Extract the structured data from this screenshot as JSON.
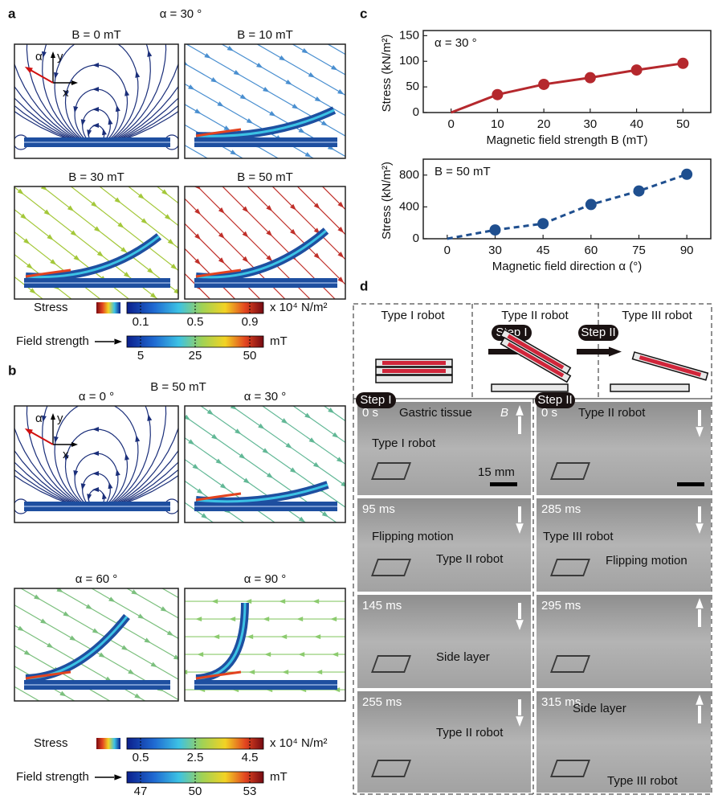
{
  "panel_labels": {
    "a": "a",
    "b": "b",
    "c": "c",
    "d": "d"
  },
  "axes_inset": {
    "alpha": "α",
    "y": "y",
    "x": "x"
  },
  "panel_a": {
    "title": "α = 30 °",
    "plots": [
      "B = 0 mT",
      "B = 10 mT",
      "B = 30 mT",
      "B = 50 mT"
    ],
    "stress_label": "Stress",
    "stress_unit": "x 10⁴ N/m²",
    "stress_ticks": [
      "0.1",
      "0.5",
      "0.9"
    ],
    "field_label": "Field strength",
    "field_unit": "mT",
    "field_ticks": [
      "5",
      "25",
      "50"
    ]
  },
  "panel_b": {
    "title": "B = 50 mT",
    "plots": [
      "α = 0 °",
      "α = 30 °",
      "α = 60 °",
      "α = 90 °"
    ],
    "stress_label": "Stress",
    "stress_unit": "x 10⁴ N/m²",
    "stress_ticks": [
      "0.5",
      "2.5",
      "4.5"
    ],
    "field_label": "Field strength",
    "field_unit": "mT",
    "field_ticks": [
      "47",
      "50",
      "53"
    ]
  },
  "chart_data": [
    {
      "type": "line",
      "annotation": "α = 30 °",
      "x_label": "Magnetic field strength B (mT)",
      "y_label": "Stress (kN/m²)",
      "x": [
        0,
        10,
        20,
        30,
        40,
        50
      ],
      "series": [
        {
          "color": "#b5282d",
          "values": [
            0,
            35,
            55,
            68,
            83,
            96
          ]
        }
      ],
      "xlim": [
        -6,
        56
      ],
      "xticks": [
        0,
        10,
        20,
        30,
        40,
        50
      ],
      "ylim": [
        0,
        160
      ],
      "yticks": [
        0,
        50,
        100,
        150
      ]
    },
    {
      "type": "line",
      "annotation": "B = 50 mT",
      "x_label": "Magnetic field direction α (°)",
      "y_label": "Stress (kN/m²)",
      "categories": [
        "0",
        "30",
        "45",
        "60",
        "75",
        "90"
      ],
      "series": [
        {
          "color": "#1f4f8f",
          "dashed": true,
          "values": [
            0,
            110,
            190,
            430,
            600,
            810
          ]
        }
      ],
      "ylim": [
        0,
        1000
      ],
      "yticks": [
        0,
        400,
        800
      ]
    }
  ],
  "panel_d": {
    "robots": [
      "Type I robot",
      "Type II robot",
      "Type III robot"
    ],
    "steps": [
      "Step I",
      "Step II"
    ],
    "columns": [
      {
        "step": "Step I",
        "frames": [
          {
            "time": "0 s",
            "notes": [
              "Gastric tissue",
              "Type I robot"
            ],
            "scale": "15 mm",
            "field": "B"
          },
          {
            "time": "95 ms",
            "notes": [
              "Flipping motion",
              "Type II robot"
            ]
          },
          {
            "time": "145 ms",
            "notes": [
              "Side layer"
            ]
          },
          {
            "time": "255 ms",
            "notes": [
              "Type II robot"
            ]
          }
        ]
      },
      {
        "step": "Step II",
        "frames": [
          {
            "time": "0 s",
            "notes": [
              "Type II robot"
            ]
          },
          {
            "time": "285 ms",
            "notes": [
              "Type III robot",
              "Flipping motion"
            ]
          },
          {
            "time": "295 ms",
            "notes": []
          },
          {
            "time": "315 ms",
            "notes": [
              "Side layer",
              "Type III robot"
            ]
          }
        ]
      }
    ]
  }
}
